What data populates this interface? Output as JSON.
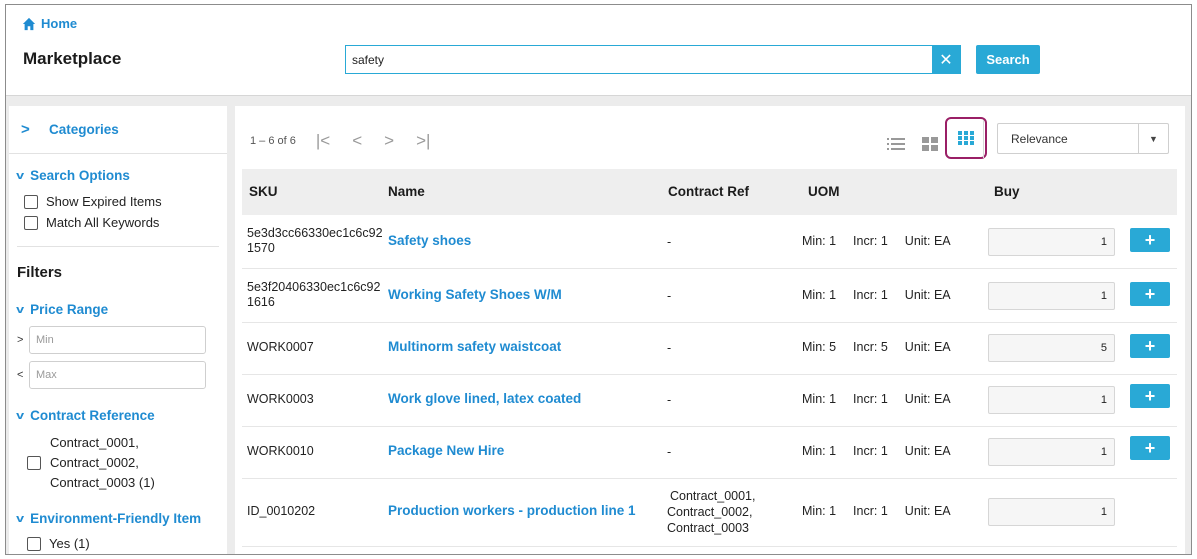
{
  "header": {
    "home_label": "Home",
    "title": "Marketplace",
    "search_value": "safety",
    "clear_label": "✕",
    "search_button": "Search"
  },
  "sidebar": {
    "categories_label": "Categories",
    "search_options": {
      "title": "Search Options",
      "items": [
        "Show Expired Items",
        "Match All Keywords"
      ]
    },
    "filters_title": "Filters",
    "price_range": {
      "title": "Price Range",
      "min_symbol": ">",
      "min_placeholder": "Min",
      "max_symbol": "<",
      "max_placeholder": "Max"
    },
    "contract_reference": {
      "title": "Contract Reference",
      "lines": [
        "Contract_0001,",
        "Contract_0002,",
        "Contract_0003 (1)"
      ]
    },
    "environment": {
      "title": "Environment-Friendly Item",
      "option": "Yes (1)"
    }
  },
  "main": {
    "pager_count": "1 – 6 of 6",
    "pager_icons": [
      "first-page-icon",
      "prev-page-icon",
      "next-page-icon",
      "last-page-icon"
    ],
    "view_icons": [
      "list-view-icon",
      "tile-view-icon",
      "grid-view-icon"
    ],
    "active_view": "grid-view-icon",
    "sort_value": "Relevance",
    "columns": {
      "sku": "SKU",
      "name": "Name",
      "contract_ref": "Contract Ref",
      "uom": "UOM",
      "buy": "Buy"
    },
    "rows": [
      {
        "sku": [
          "5e3d3cc66330ec1c6c92",
          "1570"
        ],
        "name": "Safety shoes",
        "contract_ref": [
          "-"
        ],
        "min": "Min: 1",
        "incr": "Incr: 1",
        "unit": "Unit: EA",
        "qty": "1",
        "add": "+"
      },
      {
        "sku": [
          "5e3f20406330ec1c6c92",
          "1616"
        ],
        "name": "Working Safety Shoes W/M",
        "contract_ref": [
          "-"
        ],
        "min": "Min: 1",
        "incr": "Incr: 1",
        "unit": "Unit: EA",
        "qty": "1",
        "add": "+"
      },
      {
        "sku": [
          "WORK0007"
        ],
        "name": "Multinorm safety waistcoat",
        "contract_ref": [
          "-"
        ],
        "min": "Min: 5",
        "incr": "Incr: 5",
        "unit": "Unit: EA",
        "qty": "5",
        "add": "+"
      },
      {
        "sku": [
          "WORK0003"
        ],
        "name": "Work glove lined, latex coated",
        "contract_ref": [
          "-"
        ],
        "min": "Min: 1",
        "incr": "Incr: 1",
        "unit": "Unit: EA",
        "qty": "1",
        "add": "+"
      },
      {
        "sku": [
          "WORK0010"
        ],
        "name": "Package New Hire",
        "contract_ref": [
          "-"
        ],
        "min": "Min: 1",
        "incr": "Incr: 1",
        "unit": "Unit: EA",
        "qty": "1",
        "add": "+"
      },
      {
        "sku": [
          "ID_0010202"
        ],
        "name": "Production workers - production line 1",
        "contract_ref": [
          "Contract_0001,",
          "Contract_0002,",
          "Contract_0003"
        ],
        "min": "Min: 1",
        "incr": "Incr: 1",
        "unit": "Unit: EA",
        "qty": "1",
        "add": ""
      }
    ]
  },
  "colors": {
    "accent": "#29a9d6",
    "link": "#1f8bd1",
    "active_view_border": "#9a1f66"
  }
}
